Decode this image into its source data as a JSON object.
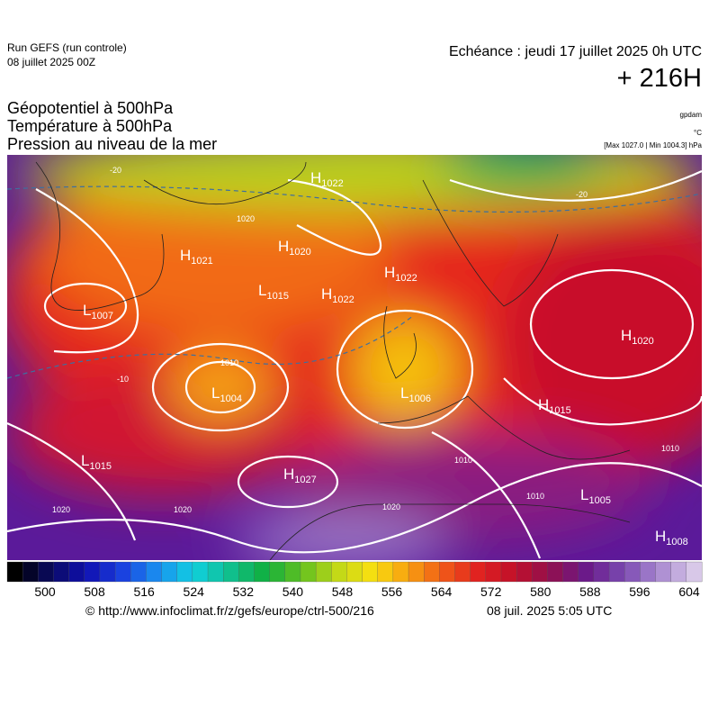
{
  "header": {
    "run": "Run GEFS (run controle)",
    "run_date": "08 juillet 2025 00Z",
    "valid": "Echéance : jeudi 17 juillet 2025 0h UTC",
    "lead": "+ 216H"
  },
  "titles": [
    "Géopotentiel à 500hPa",
    "Température à 500hPa",
    "Pression au niveau de la mer"
  ],
  "units": [
    "gpdam",
    "°C",
    "[Max 1027.0 | Min 1004.3] hPa"
  ],
  "map": {
    "centers": [
      {
        "kind": "H",
        "value": "1022"
      },
      {
        "kind": "H",
        "value": "1021"
      },
      {
        "kind": "H",
        "value": "1020"
      },
      {
        "kind": "L",
        "value": "1015"
      },
      {
        "kind": "H",
        "value": "1022"
      },
      {
        "kind": "H",
        "value": "1022"
      },
      {
        "kind": "L",
        "value": "1007"
      },
      {
        "kind": "L",
        "value": "1004"
      },
      {
        "kind": "L",
        "value": "1006"
      },
      {
        "kind": "H",
        "value": "1020"
      },
      {
        "kind": "H",
        "value": "1015"
      },
      {
        "kind": "L",
        "value": "1015"
      },
      {
        "kind": "H",
        "value": "1027"
      },
      {
        "kind": "L",
        "value": "1005"
      },
      {
        "kind": "H",
        "value": "1008"
      }
    ],
    "contour_labels": [
      "1010",
      "1020",
      "1020",
      "1010",
      "1010",
      "1010",
      "1020",
      "-20",
      "-20",
      "-10",
      "1020"
    ]
  },
  "colorbar": {
    "ticks": [
      500,
      508,
      516,
      524,
      532,
      540,
      548,
      556,
      564,
      572,
      580,
      588,
      596,
      604
    ]
  },
  "footer": {
    "source": "© http://www.infoclimat.fr/z/gefs/europe/ctrl-500/216",
    "generated": "08 juil. 2025  5:05 UTC"
  }
}
